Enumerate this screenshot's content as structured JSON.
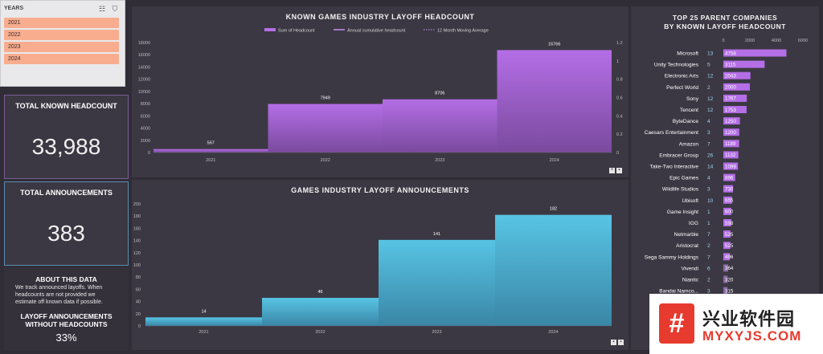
{
  "slicer": {
    "title": "YEARS",
    "years": [
      "2021",
      "2022",
      "2023",
      "2024"
    ]
  },
  "kpi_headcount": {
    "label": "TOTAL KNOWN HEADCOUNT",
    "value": "33,988"
  },
  "kpi_announcements": {
    "label": "TOTAL ANNOUNCEMENTS",
    "value": "383"
  },
  "about": {
    "title": "ABOUT THIS DATA",
    "lines": [
      "We track announced layoffs. When",
      "headcounts are not provided we",
      "estimate off known data if possible."
    ],
    "sub_title_1": "LAYOFF ANNOUNCEMENTS",
    "sub_title_2": "WITHOUT HEADCOUNTS",
    "percent": "33%"
  },
  "headcount_chart": {
    "title": "KNOWN GAMES INDUSTRY LAYOFF HEADCOUNT",
    "legend": [
      "Sum of Headcount",
      "Annual cumulative headcount",
      "12 Month Moving Average"
    ],
    "y_ticks": [
      "0",
      "2000",
      "4000",
      "6000",
      "8000",
      "10000",
      "12000",
      "14000",
      "16000",
      "18000"
    ],
    "y2_ticks": [
      "0",
      "0.2",
      "0.4",
      "0.6",
      "0.8",
      "1",
      "1.2"
    ],
    "colors": {
      "bar": "#b46ee6",
      "line": "#c98cf2"
    }
  },
  "announce_chart": {
    "title": "GAMES INDUSTRY LAYOFF ANNOUNCEMENTS",
    "y_ticks": [
      "0",
      "20",
      "40",
      "60",
      "80",
      "100",
      "120",
      "140",
      "160",
      "180",
      "200"
    ],
    "colors": {
      "bar": "#56c0e0"
    }
  },
  "companies_chart": {
    "title_1": "TOP 25 PARENT COMPANIES",
    "title_2": "BY KNOWN LAYOFF HEADCOUNT",
    "x_ticks": [
      "0",
      "2000",
      "4000",
      "6000"
    ],
    "colors": {
      "bar": "#b46ee6"
    }
  },
  "chart_data": [
    {
      "type": "bar",
      "title": "KNOWN GAMES INDUSTRY LAYOFF HEADCOUNT",
      "categories": [
        "2021",
        "2022",
        "2023",
        "2024"
      ],
      "series": [
        {
          "name": "Sum of Headcount",
          "values": [
            567,
            7949,
            8706,
            16766
          ]
        }
      ],
      "ylim": [
        0,
        18000
      ],
      "y2lim": [
        0,
        1.2
      ]
    },
    {
      "type": "bar",
      "title": "GAMES INDUSTRY LAYOFF ANNOUNCEMENTS",
      "categories": [
        "2021",
        "2022",
        "2023",
        "2024"
      ],
      "values": [
        14,
        46,
        141,
        182
      ],
      "ylim": [
        0,
        200
      ]
    },
    {
      "type": "bar",
      "title": "TOP 25 PARENT COMPANIES BY KNOWN LAYOFF HEADCOUNT",
      "xlim": [
        0,
        6000
      ],
      "rows": [
        {
          "name": "Microsoft",
          "count": "13",
          "value": 4758
        },
        {
          "name": "Unity Technologies",
          "count": "5",
          "value": 3115
        },
        {
          "name": "Electronic Arts",
          "count": "12",
          "value": 2043
        },
        {
          "name": "Perfect World",
          "count": "2",
          "value": 2000
        },
        {
          "name": "Sony",
          "count": "12",
          "value": 1767
        },
        {
          "name": "Tencent",
          "count": "12",
          "value": 1753
        },
        {
          "name": "ByteDance",
          "count": "4",
          "value": 1250
        },
        {
          "name": "Caesars Entertainment",
          "count": "3",
          "value": 1200
        },
        {
          "name": "Amazon",
          "count": "7",
          "value": 1189
        },
        {
          "name": "Embracer Group",
          "count": "26",
          "value": 1132
        },
        {
          "name": "Take-Two Interactive",
          "count": "14",
          "value": 1099
        },
        {
          "name": "Epic Games",
          "count": "4",
          "value": 896
        },
        {
          "name": "Wildlife Studios",
          "count": "3",
          "value": 730
        },
        {
          "name": "Ubisoft",
          "count": "10",
          "value": 655
        },
        {
          "name": "Game Insight",
          "count": "1",
          "value": 600
        },
        {
          "name": "IGG",
          "count": "1",
          "value": 598
        },
        {
          "name": "Netmarble",
          "count": "7",
          "value": 535
        },
        {
          "name": "Aristocrat",
          "count": "2",
          "value": 525
        },
        {
          "name": "Sega Sammy Holdings",
          "count": "7",
          "value": 496
        },
        {
          "name": "Vivendi",
          "count": "6",
          "value": 364
        },
        {
          "name": "Niantic",
          "count": "2",
          "value": 320
        },
        {
          "name": "Bandai Namco...",
          "count": "3",
          "value": 315
        }
      ]
    }
  ],
  "watermark": {
    "cn": "兴业软件园",
    "en": "MYXYJS.COM",
    "logo": "#"
  }
}
